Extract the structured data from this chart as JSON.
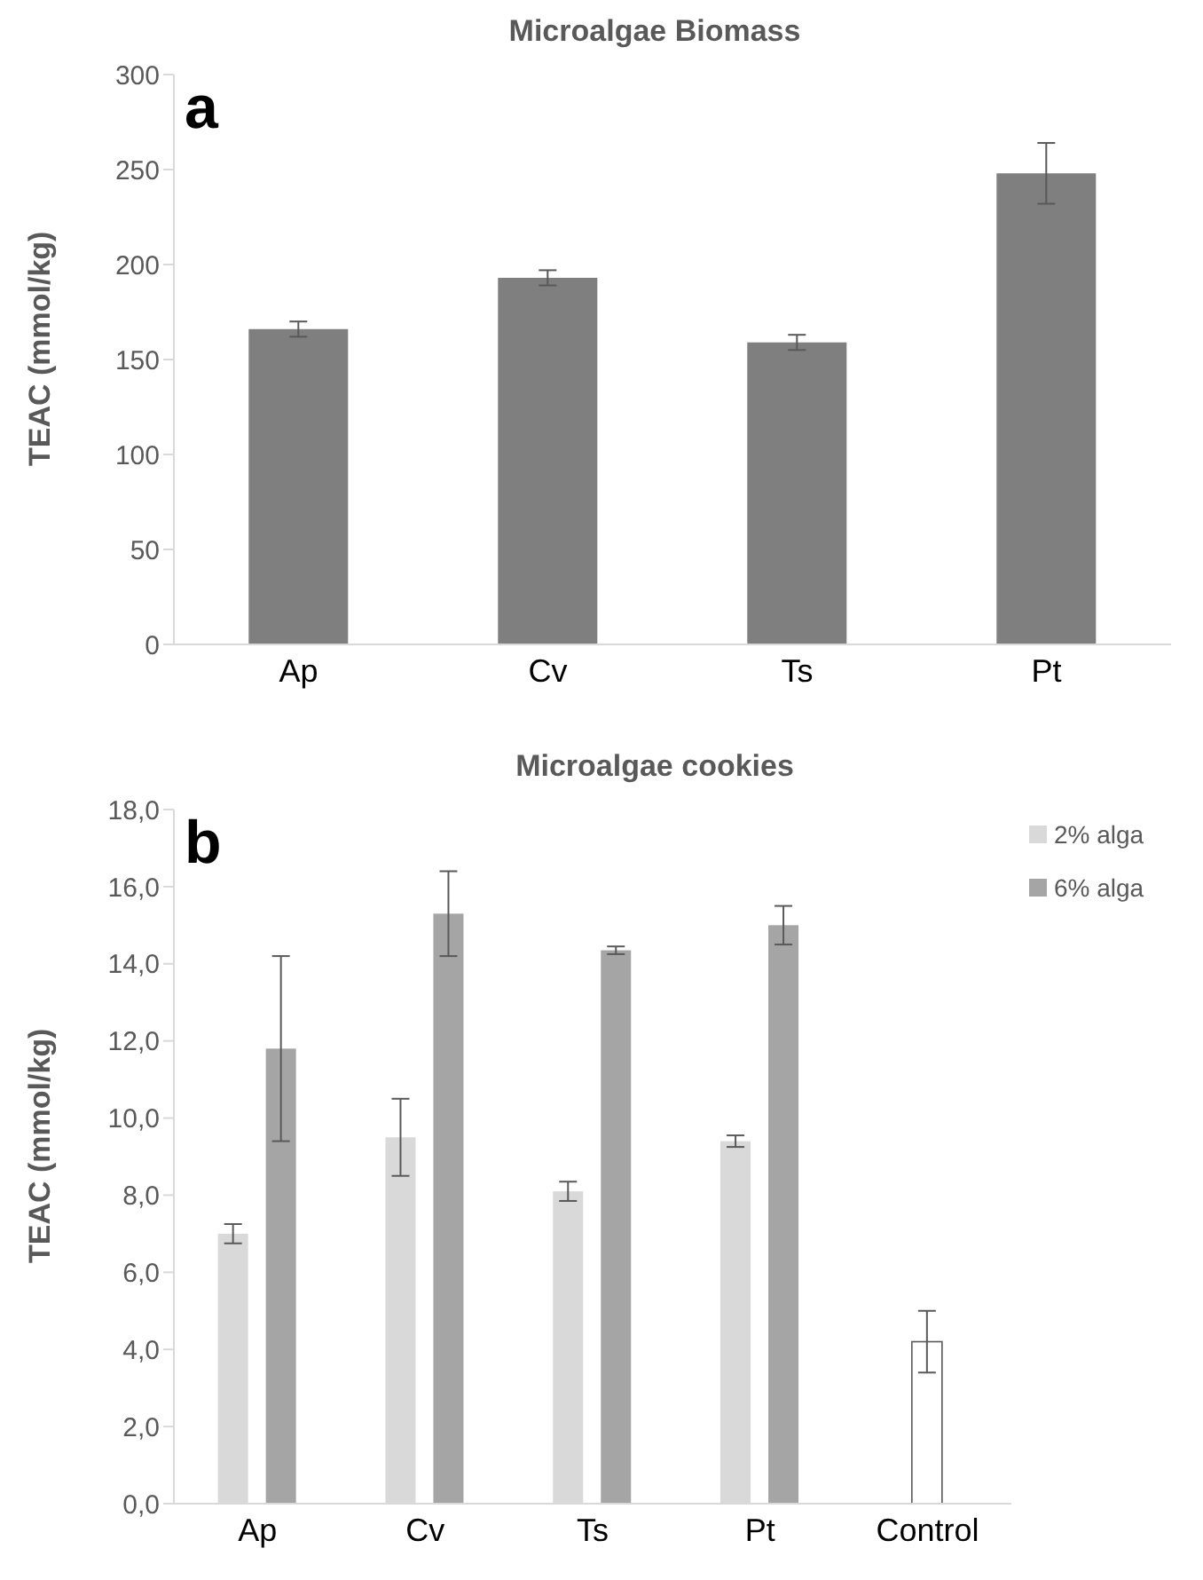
{
  "chart_data": [
    {
      "type": "bar",
      "title": "Microalgae Biomass",
      "ylabel": "TEAC (mmol/kg)",
      "annotations": [
        "a"
      ],
      "categories": [
        "Ap",
        "Cv",
        "Ts",
        "Pt"
      ],
      "values": [
        166,
        193,
        159,
        248
      ],
      "errors": [
        4,
        4,
        4,
        16
      ],
      "color": "#7f7f7f",
      "ylim": [
        0,
        300
      ],
      "yticks": [
        0,
        50,
        100,
        150,
        200,
        250,
        300
      ],
      "grid": false,
      "legend": false
    },
    {
      "type": "bar",
      "title": "Microalgae cookies",
      "ylabel": "TEAC (mmol/kg)",
      "annotations": [
        "b"
      ],
      "categories": [
        "Ap",
        "Cv",
        "Ts",
        "Pt",
        "Control"
      ],
      "series": [
        {
          "name": "2% alga",
          "color": "#d9d9d9",
          "values": [
            7.0,
            9.5,
            8.1,
            9.4,
            null
          ],
          "errors": [
            0.25,
            1.0,
            0.25,
            0.15,
            null
          ]
        },
        {
          "name": "6% alga",
          "color": "#a5a5a5",
          "values": [
            11.8,
            15.3,
            14.35,
            15.0,
            null
          ],
          "errors": [
            2.4,
            1.1,
            0.1,
            0.5,
            null
          ]
        },
        {
          "color": "#ffffff",
          "values": [
            null,
            null,
            null,
            null,
            4.2
          ],
          "errors": [
            null,
            null,
            null,
            null,
            0.8
          ]
        }
      ],
      "ylim": [
        0,
        18
      ],
      "yticks": [
        {
          "value": 0,
          "label": "0,0"
        },
        {
          "value": 2,
          "label": "2,0"
        },
        {
          "value": 4,
          "label": "4,0"
        },
        {
          "value": 6,
          "label": "6,0"
        },
        {
          "value": 8,
          "label": "8,0"
        },
        {
          "value": 10,
          "label": "10,0"
        },
        {
          "value": 12,
          "label": "12,0"
        },
        {
          "value": 14,
          "label": "14,0"
        },
        {
          "value": 16,
          "label": "16,0"
        },
        {
          "value": 18,
          "label": "18,0"
        }
      ],
      "grid": false,
      "legend": "top right"
    }
  ]
}
